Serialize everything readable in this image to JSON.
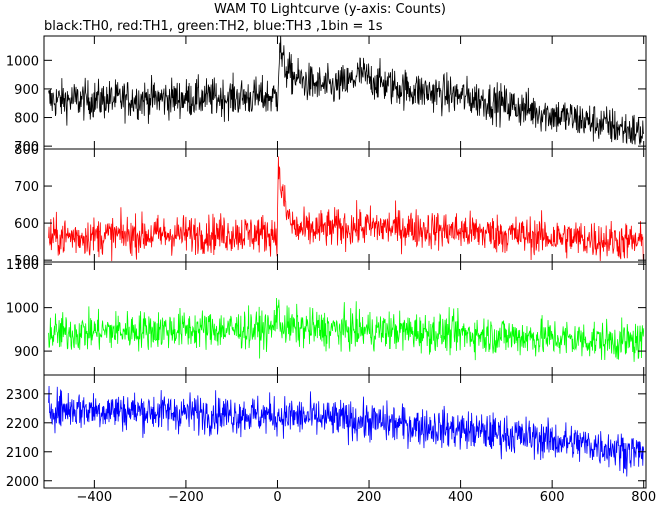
{
  "header": {
    "title": "WAM T0 Lightcurve (y-axis: Counts)",
    "subtitle": "black:TH0, red:TH1, green:TH2, blue:TH3 ,1bin = 1s"
  },
  "chart_data": {
    "type": "line",
    "title": "WAM T0 Lightcurve (y-axis: Counts)",
    "subtitle": "black:TH0, red:TH1, green:TH2, blue:TH3 ,1bin = 1s",
    "xlabel": "",
    "xlim": [
      -510,
      805
    ],
    "xticks": [
      -400,
      -200,
      0,
      200,
      400,
      600,
      800
    ],
    "xtick_labels": [
      "−400",
      "−200",
      "0",
      "200",
      "400",
      "600",
      "800"
    ],
    "grid": false,
    "panels": [
      {
        "name": "TH0",
        "color": "#000000",
        "ylim": [
          690,
          1085
        ],
        "yticks": [
          700,
          800,
          900,
          1000
        ],
        "ytick_labels": [
          "700",
          "800",
          "900",
          "1000"
        ],
        "x": [
          -500,
          -400,
          -300,
          -200,
          -100,
          -10,
          0,
          5,
          10,
          20,
          30,
          50,
          80,
          120,
          160,
          180,
          200,
          250,
          300,
          400,
          500,
          600,
          700,
          800
        ],
        "values": [
          860,
          862,
          865,
          868,
          870,
          872,
          875,
          1060,
          1000,
          965,
          950,
          930,
          915,
          905,
          925,
          955,
          935,
          910,
          895,
          875,
          845,
          810,
          780,
          745
        ]
      },
      {
        "name": "TH1",
        "color": "#ff0000",
        "ylim": [
          495,
          800
        ],
        "yticks": [
          500,
          600,
          700,
          800
        ],
        "ytick_labels": [
          "500",
          "600",
          "700",
          "800"
        ],
        "x": [
          -500,
          -400,
          -300,
          -200,
          -100,
          -10,
          0,
          2,
          5,
          10,
          20,
          30,
          40,
          60,
          100,
          200,
          300,
          400,
          500,
          600,
          700,
          800
        ],
        "values": [
          562,
          565,
          568,
          570,
          572,
          572,
          575,
          760,
          720,
          680,
          630,
          600,
          585,
          580,
          585,
          590,
          585,
          578,
          570,
          562,
          555,
          548
        ]
      },
      {
        "name": "TH2",
        "color": "#00ff00",
        "ylim": [
          845,
          1105
        ],
        "yticks": [
          900,
          1000,
          1100
        ],
        "ytick_labels": [
          "900",
          "1000",
          "1100"
        ],
        "x": [
          -500,
          -400,
          -300,
          -200,
          -100,
          -10,
          0,
          5,
          20,
          100,
          200,
          300,
          400,
          500,
          600,
          700,
          800
        ],
        "values": [
          940,
          945,
          948,
          950,
          950,
          950,
          1000,
          965,
          955,
          950,
          948,
          945,
          940,
          935,
          930,
          925,
          920
        ]
      },
      {
        "name": "TH3",
        "color": "#0000ff",
        "ylim": [
          1975,
          2365
        ],
        "yticks": [
          2000,
          2100,
          2200,
          2300
        ],
        "ytick_labels": [
          "2000",
          "2100",
          "2200",
          "2300"
        ],
        "x": [
          -500,
          -400,
          -300,
          -200,
          -100,
          0,
          100,
          200,
          300,
          400,
          500,
          600,
          700,
          800
        ],
        "values": [
          2250,
          2245,
          2240,
          2235,
          2230,
          2225,
          2215,
          2205,
          2190,
          2175,
          2160,
          2140,
          2120,
          2095
        ]
      }
    ]
  }
}
